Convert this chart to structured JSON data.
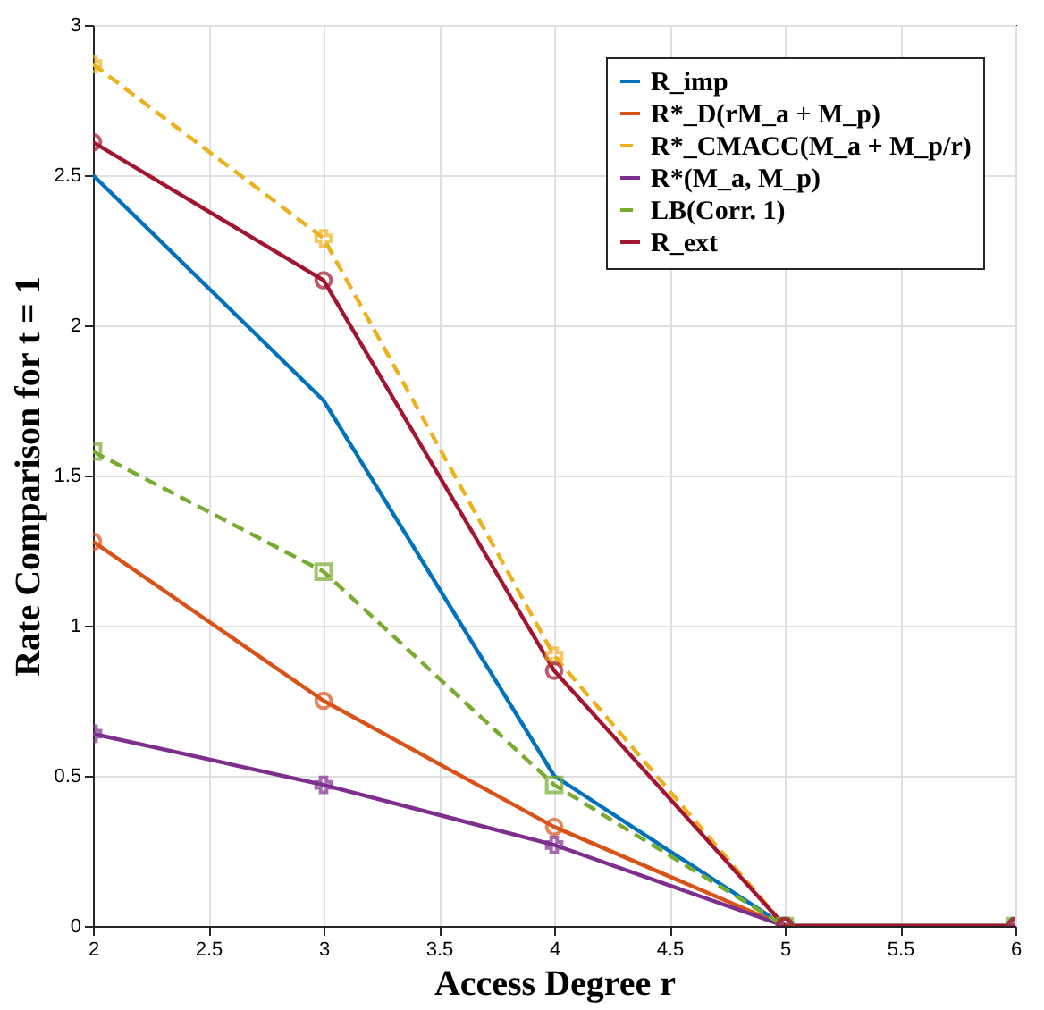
{
  "chart_data": {
    "type": "line",
    "xlabel": "Access Degree r",
    "ylabel": "Rate Comparison for t = 1",
    "x": [
      2,
      3,
      4,
      5,
      6
    ],
    "series": [
      {
        "name": "R_imp",
        "color": "#0072bd",
        "values": [
          2.5,
          1.75,
          0.5,
          0,
          0
        ],
        "marker": "none",
        "line_style": "solid"
      },
      {
        "name": "R*_D(rM_a + M_p)",
        "color": "#d95319",
        "values": [
          1.28,
          0.75,
          0.33,
          0,
          0
        ],
        "marker": "circle",
        "line_style": "solid"
      },
      {
        "name": "R*_CMACC(M_a + M_p/r)",
        "color": "#edb120",
        "values": [
          2.87,
          2.29,
          0.9,
          0,
          0
        ],
        "marker": "cross",
        "line_style": "dashed"
      },
      {
        "name": "R*(M_a, M_p)",
        "color": "#7e2f8e",
        "values": [
          0.64,
          0.47,
          0.27,
          0,
          0
        ],
        "marker": "cross",
        "line_style": "solid"
      },
      {
        "name": "LB(Corr. 1)",
        "color": "#77ac30",
        "values": [
          1.58,
          1.18,
          0.47,
          0,
          0
        ],
        "marker": "square",
        "line_style": "dashed"
      },
      {
        "name": "R_ext",
        "color": "#a2142f",
        "values": [
          2.61,
          2.15,
          0.85,
          0,
          0
        ],
        "marker": "circle",
        "line_style": "solid"
      }
    ],
    "xlim": [
      2,
      6
    ],
    "xticks": [
      2,
      2.5,
      3,
      3.5,
      4,
      4.5,
      5,
      5.5,
      6
    ],
    "ylim": [
      0,
      3
    ],
    "yticks": [
      0,
      0.5,
      1,
      1.5,
      2,
      2.5,
      3
    ],
    "grid": true,
    "legend": "top right"
  }
}
